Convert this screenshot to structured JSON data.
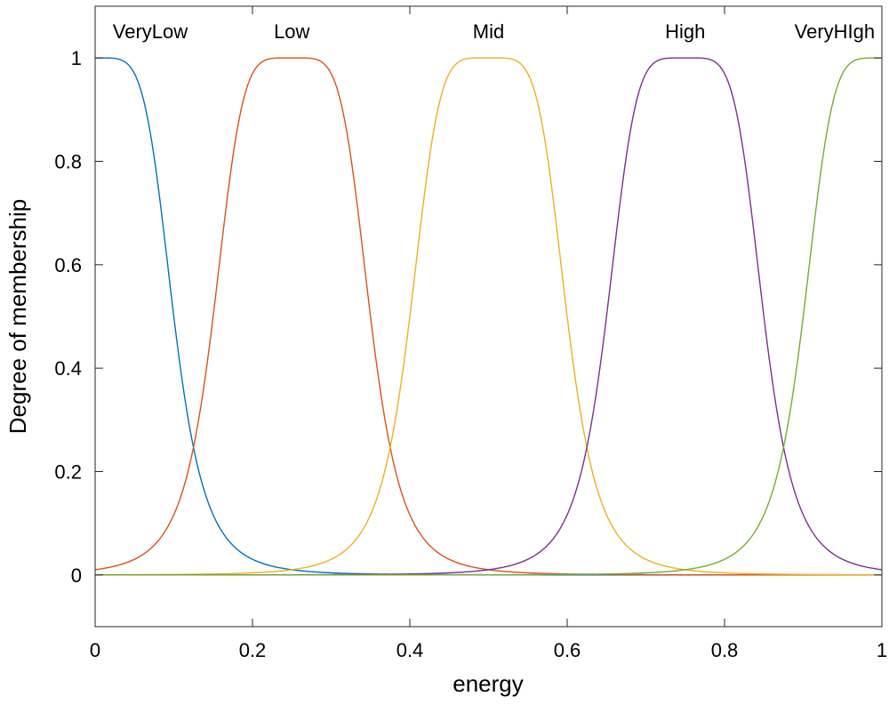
{
  "chart_data": {
    "type": "line",
    "title": "",
    "xlabel": "energy",
    "ylabel": "Degree of membership",
    "xlim": [
      0,
      1
    ],
    "ylim": [
      -0.1,
      1.1
    ],
    "xticks": [
      0,
      0.2,
      0.4,
      0.6,
      0.8,
      1
    ],
    "xtick_labels": [
      "0",
      "0.2",
      "0.4",
      "0.6",
      "0.8",
      "1"
    ],
    "yticks": [
      0,
      0.2,
      0.4,
      0.6,
      0.8,
      1
    ],
    "ytick_labels": [
      "0",
      "0.2",
      "0.4",
      "0.6",
      "0.8",
      "1"
    ],
    "grid": false,
    "legend": "none",
    "membership_function": "gbellmf",
    "series": [
      {
        "name": "VeryLow",
        "color": "#0072bd",
        "params": {
          "a": 0.1,
          "b": 2.5,
          "c": 0
        },
        "label_x": 0.07
      },
      {
        "name": "Low",
        "color": "#d95319",
        "params": {
          "a": 0.1,
          "b": 2.5,
          "c": 0.25
        },
        "label_x": 0.25
      },
      {
        "name": "Mid",
        "color": "#edb120",
        "params": {
          "a": 0.1,
          "b": 2.5,
          "c": 0.5
        },
        "label_x": 0.5
      },
      {
        "name": "High",
        "color": "#7e2f8e",
        "params": {
          "a": 0.1,
          "b": 2.5,
          "c": 0.75
        },
        "label_x": 0.75
      },
      {
        "name": "VeryHIgh",
        "color": "#77ac30",
        "params": {
          "a": 0.1,
          "b": 2.5,
          "c": 1
        },
        "label_x": 0.94
      }
    ]
  }
}
